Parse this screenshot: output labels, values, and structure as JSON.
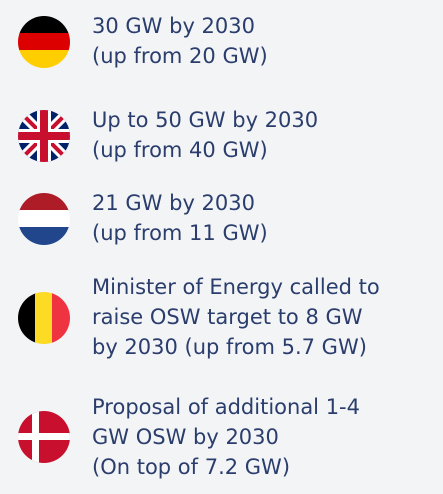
{
  "items": [
    {
      "lines": [
        "30 GW by 2030",
        "(up from 20 GW)"
      ]
    },
    {
      "lines": [
        "Up to 50 GW by 2030",
        "(up from 40 GW)"
      ]
    },
    {
      "lines": [
        "21 GW by 2030",
        "(up from 11 GW)"
      ]
    },
    {
      "lines": [
        "Minister of Energy called to",
        "raise OSW target to 8 GW",
        "by 2030 (up from 5.7 GW)"
      ]
    },
    {
      "lines": [
        "Proposal of additional 1-4",
        "GW OSW by 2030",
        "(On top of 7.2 GW)"
      ]
    }
  ]
}
